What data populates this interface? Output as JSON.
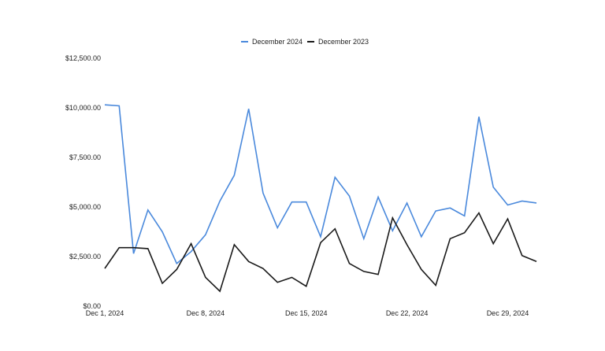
{
  "chart_data": {
    "type": "line",
    "title": "",
    "xlabel": "",
    "ylabel": "",
    "x": [
      "Dec 1",
      "Dec 2",
      "Dec 3",
      "Dec 4",
      "Dec 5",
      "Dec 6",
      "Dec 7",
      "Dec 8",
      "Dec 9",
      "Dec 10",
      "Dec 11",
      "Dec 12",
      "Dec 13",
      "Dec 14",
      "Dec 15",
      "Dec 16",
      "Dec 17",
      "Dec 18",
      "Dec 19",
      "Dec 20",
      "Dec 21",
      "Dec 22",
      "Dec 23",
      "Dec 24",
      "Dec 25",
      "Dec 26",
      "Dec 27",
      "Dec 28",
      "Dec 29",
      "Dec 30",
      "Dec 31"
    ],
    "x_tick_labels": [
      {
        "index": 0,
        "label": "Dec 1, 2024"
      },
      {
        "index": 7,
        "label": "Dec 8, 2024"
      },
      {
        "index": 14,
        "label": "Dec 15, 2024"
      },
      {
        "index": 21,
        "label": "Dec 22, 2024"
      },
      {
        "index": 28,
        "label": "Dec 29, 2024"
      }
    ],
    "y_ticks": [
      0,
      2500,
      5000,
      7500,
      10000,
      12500
    ],
    "y_tick_labels": [
      "$0.00",
      "$2,500.00",
      "$5,000.00",
      "$7,500.00",
      "$10,000.00",
      "$12,500.00"
    ],
    "ylim": [
      0,
      12500
    ],
    "grid": false,
    "legend_position": "top-center",
    "series": [
      {
        "name": "December 2024",
        "color": "#4a89dc",
        "values": [
          10150,
          10100,
          2650,
          4850,
          3750,
          2150,
          2750,
          3600,
          5300,
          6600,
          9950,
          5700,
          3950,
          5250,
          5250,
          3500,
          6500,
          5550,
          3400,
          5500,
          3800,
          5200,
          3500,
          4800,
          4950,
          4550,
          9550,
          6000,
          5100,
          5300,
          5200
        ]
      },
      {
        "name": "December 2023",
        "color": "#1a1a1a",
        "values": [
          1900,
          2950,
          2950,
          2900,
          1150,
          1850,
          3150,
          1450,
          750,
          3100,
          2250,
          1900,
          1200,
          1450,
          1000,
          3200,
          3900,
          2150,
          1750,
          1600,
          4450,
          3100,
          1850,
          1050,
          3400,
          3700,
          4700,
          3150,
          4400,
          2550,
          2250
        ]
      }
    ]
  }
}
